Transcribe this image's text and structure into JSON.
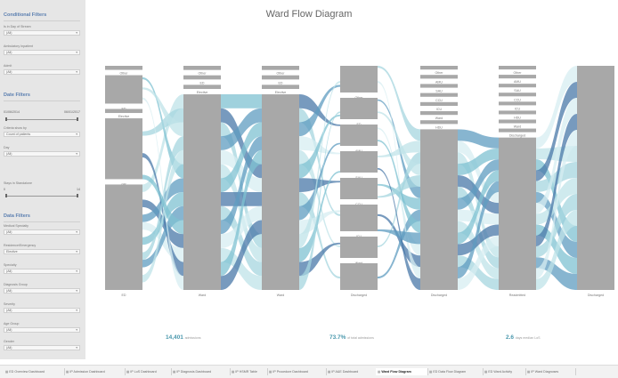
{
  "title": "Ward Flow Diagram",
  "sidebar": {
    "sections": [
      {
        "label": "Conditional Filters",
        "top": 14
      },
      {
        "label": "Date Filters",
        "top": 104
      },
      {
        "label": "Data Filters",
        "top": 240
      }
    ],
    "fields": [
      {
        "label": "Is in Day of Stream",
        "value": "(All)",
        "top": 34
      },
      {
        "label": "Ambulatory Inpatient",
        "value": "(All)",
        "top": 56
      },
      {
        "label": "Admit",
        "value": "(All)",
        "top": 78
      },
      {
        "label": "Criteria show by",
        "value": "Count of patients",
        "top": 148
      },
      {
        "label": "Day",
        "value": "(All)",
        "top": 170
      },
      {
        "label": "Medical Specialty",
        "value": "(All)",
        "top": 258
      },
      {
        "label": "Residence/Emergency",
        "value": "Elective",
        "top": 280
      },
      {
        "label": "Specialty",
        "value": "(All)",
        "top": 302
      },
      {
        "label": "Diagnosis Group",
        "value": "(All)",
        "top": 324
      },
      {
        "label": "Severity",
        "value": "(All)",
        "top": 346
      },
      {
        "label": "Age Group",
        "value": "(All)",
        "top": 368
      },
      {
        "label": "Gender",
        "value": "(All)",
        "top": 388
      }
    ],
    "date_range": {
      "start": "01/06/2014",
      "end": "06/01/2017"
    },
    "slider": {
      "label": "Stays in Standalone",
      "min": "0",
      "max": "14"
    }
  },
  "kpis": [
    {
      "value": "14,401",
      "unit": "admissions"
    },
    {
      "value": "73.7%",
      "unit": "of total admissions"
    },
    {
      "value": "2.6",
      "unit": "days median LoS"
    }
  ],
  "tabs": [
    "ED Overview Dashboard",
    "IP Admission Dashboard",
    "IP LoS Dashboard",
    "IP Diagnosis Dashboard",
    "IP HSMR Table",
    "IP Procedure Dashboard",
    "IP A&E Dashboard",
    "Ward Flow Diagram",
    "ED Data Flow Diagram",
    "ED Ward Activity",
    "IP Ward Diagnoses"
  ],
  "active_tab": "Ward Flow Diagram",
  "colors": {
    "sidebar_bg": "#e6e6e6",
    "node_gray": "#a8a8a8",
    "flow_light": "#bfe3e8",
    "flow_mid": "#7fc2d2",
    "flow_dark": "#4a78a8",
    "kpi": "#4a98ad"
  },
  "flow": {
    "columns": [
      {
        "nodes": [
          {
            "label": "Other",
            "value": 2
          },
          {
            "label": "ED",
            "value": 14
          },
          {
            "label": "Elective",
            "value": 2
          },
          {
            "label": "GP",
            "value": 30
          },
          {
            "label": "ED",
            "value": 52
          }
        ]
      },
      {
        "nodes": [
          {
            "label": "Other",
            "value": 2
          },
          {
            "label": "ED",
            "value": 2
          },
          {
            "label": "Elective",
            "value": 2
          },
          {
            "label": "Ward",
            "value": 94
          }
        ]
      },
      {
        "nodes": [
          {
            "label": "Other",
            "value": 2
          },
          {
            "label": "ED",
            "value": 2
          },
          {
            "label": "Elective",
            "value": 2
          },
          {
            "label": "Ward",
            "value": 94
          }
        ]
      },
      {
        "nodes": [
          {
            "label": "Other",
            "value": 10
          },
          {
            "label": "ED",
            "value": 8
          },
          {
            "label": "AMU",
            "value": 8
          },
          {
            "label": "SAU",
            "value": 8
          },
          {
            "label": "CCU",
            "value": 8
          },
          {
            "label": "ICU",
            "value": 10
          },
          {
            "label": "Ward",
            "value": 8
          },
          {
            "label": "Discharged",
            "value": 10
          }
        ]
      },
      {
        "nodes": [
          {
            "label": "Other",
            "value": 2
          },
          {
            "label": "AMU",
            "value": 2
          },
          {
            "label": "SAU",
            "value": 2
          },
          {
            "label": "CCU",
            "value": 2
          },
          {
            "label": "ICU",
            "value": 2
          },
          {
            "label": "Ward",
            "value": 2
          },
          {
            "label": "HDU",
            "value": 2
          },
          {
            "label": "Discharged",
            "value": 86
          }
        ]
      },
      {
        "nodes": [
          {
            "label": "Other",
            "value": 2
          },
          {
            "label": "AMU",
            "value": 2
          },
          {
            "label": "SAU",
            "value": 2
          },
          {
            "label": "CCU",
            "value": 2
          },
          {
            "label": "ICU",
            "value": 2
          },
          {
            "label": "HDU",
            "value": 2
          },
          {
            "label": "Ward",
            "value": 2
          },
          {
            "label": "Discharged",
            "value": 2
          },
          {
            "label": "Readmitted",
            "value": 84
          }
        ]
      },
      {
        "nodes": [
          {
            "label": "Discharged",
            "value": 100
          }
        ]
      }
    ]
  }
}
